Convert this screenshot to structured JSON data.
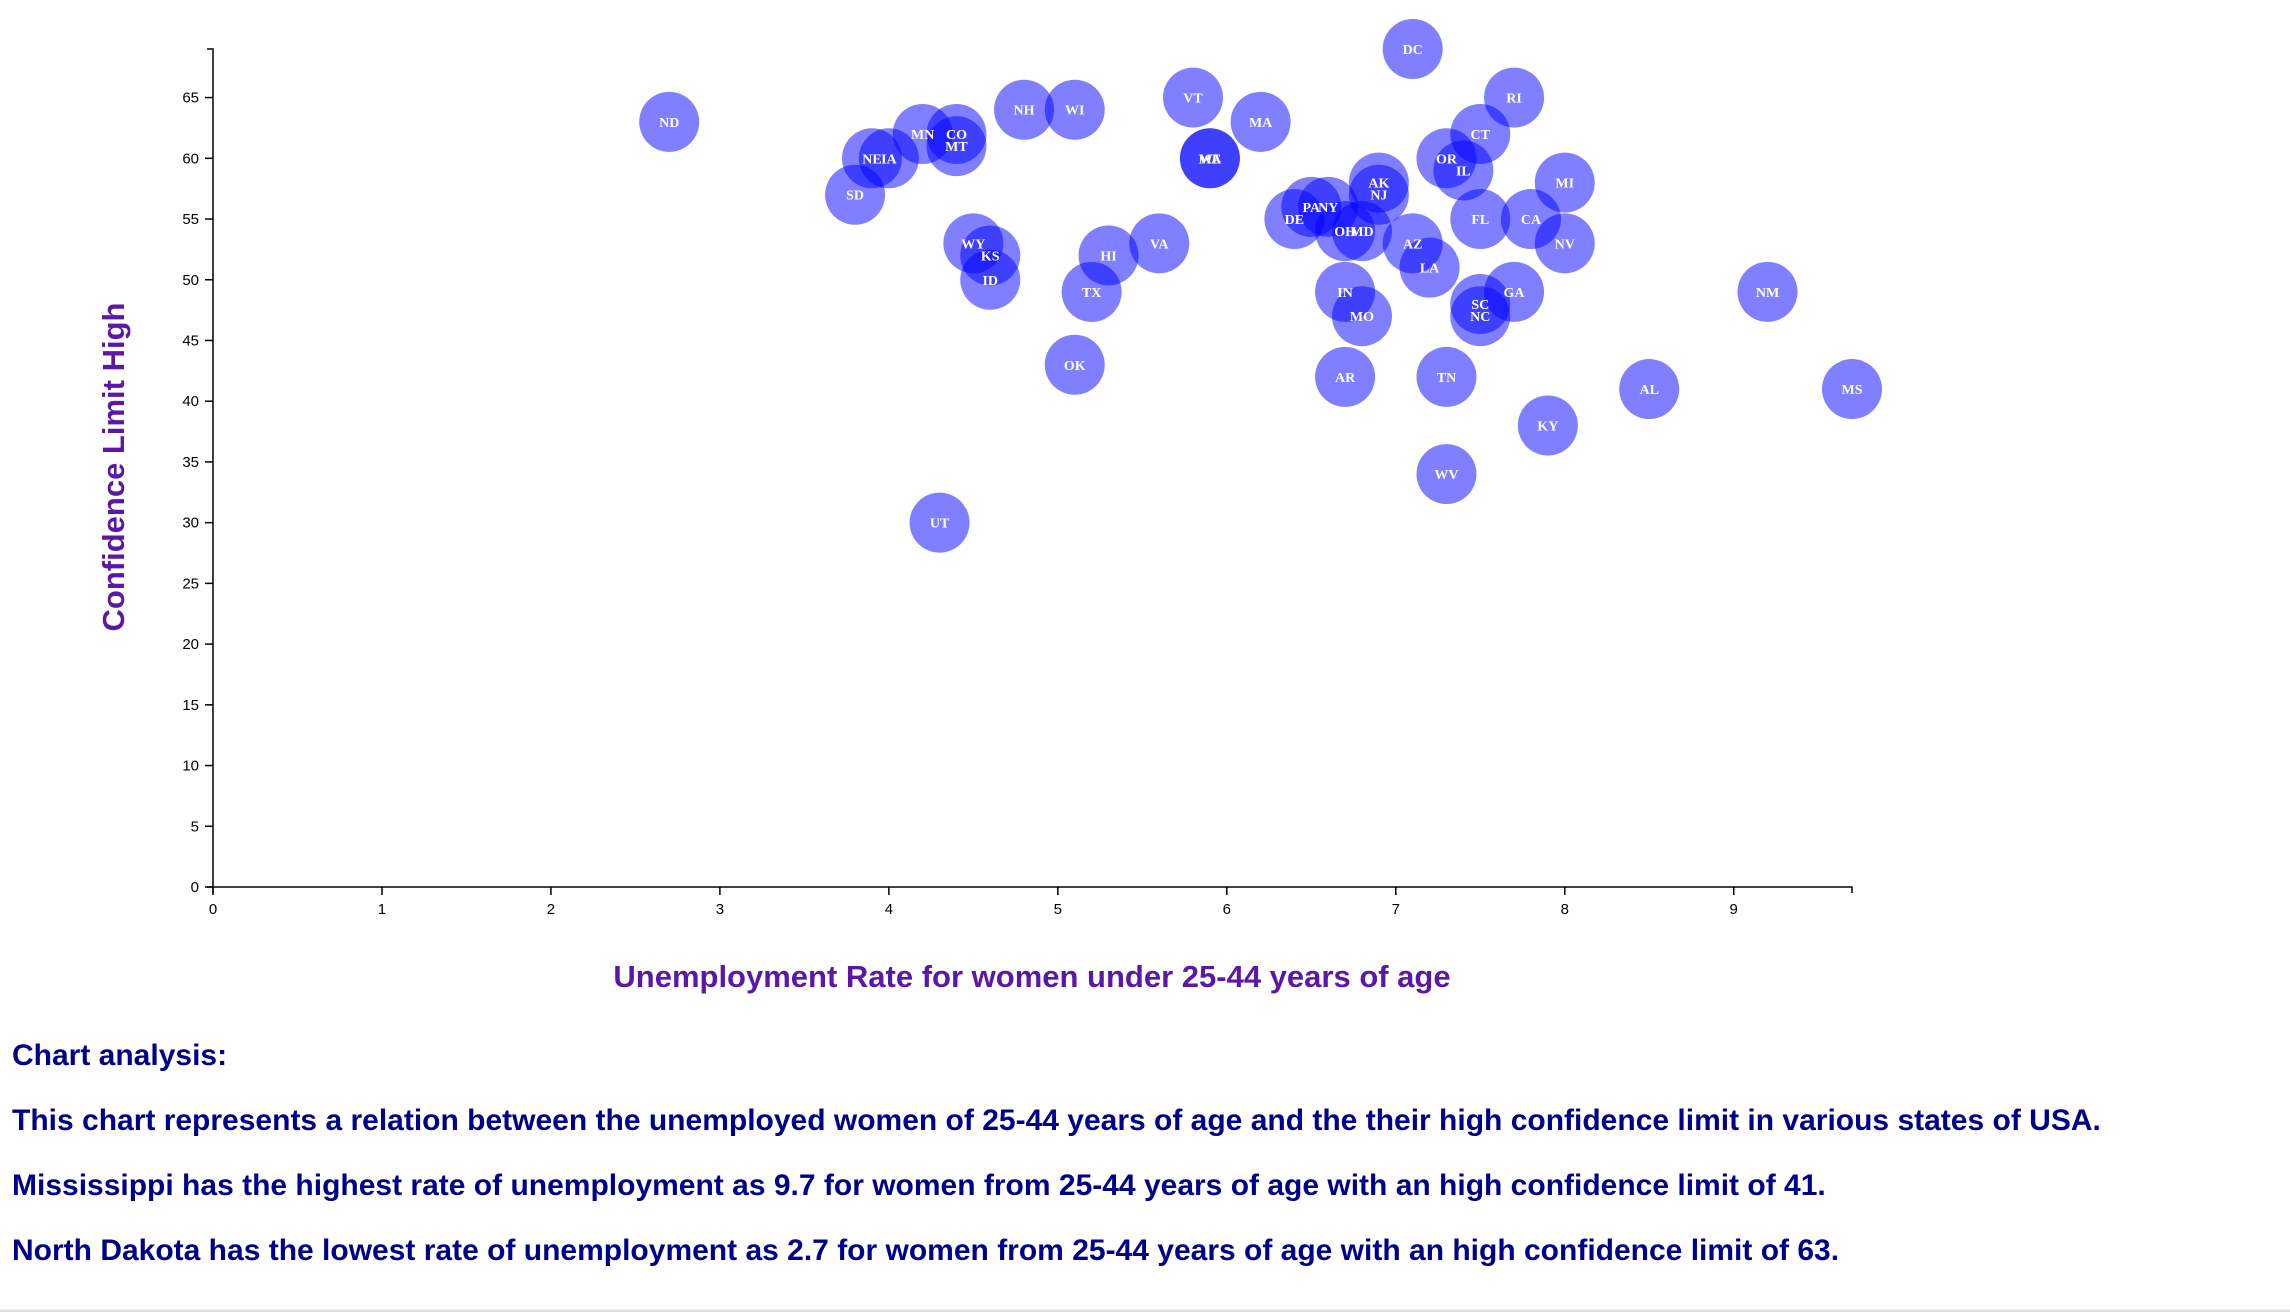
{
  "chart_data": {
    "type": "scatter",
    "title": "",
    "xlabel": "Unemployment Rate for women under 25-44 years of age",
    "ylabel": "Confidence Limit High",
    "xlim": [
      0,
      9.7
    ],
    "ylim": [
      0,
      69
    ],
    "x_ticks": [
      "0",
      "1",
      "2",
      "3",
      "4",
      "5",
      "6",
      "7",
      "8",
      "9"
    ],
    "y_ticks": [
      "0",
      "5",
      "10",
      "15",
      "20",
      "25",
      "30",
      "35",
      "40",
      "45",
      "50",
      "55",
      "60",
      "65"
    ],
    "grid": false,
    "points": [
      {
        "label": "ND",
        "x": 2.7,
        "y": 63
      },
      {
        "label": "SD",
        "x": 3.8,
        "y": 57
      },
      {
        "label": "NE",
        "x": 3.9,
        "y": 60
      },
      {
        "label": "IA",
        "x": 4.0,
        "y": 60
      },
      {
        "label": "MN",
        "x": 4.2,
        "y": 62
      },
      {
        "label": "CO",
        "x": 4.4,
        "y": 62
      },
      {
        "label": "MT",
        "x": 4.4,
        "y": 61
      },
      {
        "label": "UT",
        "x": 4.3,
        "y": 30
      },
      {
        "label": "WY",
        "x": 4.5,
        "y": 53
      },
      {
        "label": "KS",
        "x": 4.6,
        "y": 52
      },
      {
        "label": "ID",
        "x": 4.6,
        "y": 50
      },
      {
        "label": "NH",
        "x": 4.8,
        "y": 64
      },
      {
        "label": "WI",
        "x": 5.1,
        "y": 64
      },
      {
        "label": "OK",
        "x": 5.1,
        "y": 43
      },
      {
        "label": "TX",
        "x": 5.2,
        "y": 49
      },
      {
        "label": "HI",
        "x": 5.3,
        "y": 52
      },
      {
        "label": "VA",
        "x": 5.6,
        "y": 53
      },
      {
        "label": "VT",
        "x": 5.8,
        "y": 65
      },
      {
        "label": "ME",
        "x": 5.9,
        "y": 60
      },
      {
        "label": "WA",
        "x": 5.9,
        "y": 60
      },
      {
        "label": "MA",
        "x": 6.2,
        "y": 63
      },
      {
        "label": "DE",
        "x": 6.4,
        "y": 55
      },
      {
        "label": "PA",
        "x": 6.5,
        "y": 56
      },
      {
        "label": "NY",
        "x": 6.6,
        "y": 56
      },
      {
        "label": "OH",
        "x": 6.7,
        "y": 54
      },
      {
        "label": "MD",
        "x": 6.8,
        "y": 54
      },
      {
        "label": "AK",
        "x": 6.9,
        "y": 58
      },
      {
        "label": "NJ",
        "x": 6.9,
        "y": 57
      },
      {
        "label": "IN",
        "x": 6.7,
        "y": 49
      },
      {
        "label": "MO",
        "x": 6.8,
        "y": 47
      },
      {
        "label": "AR",
        "x": 6.7,
        "y": 42
      },
      {
        "label": "DC",
        "x": 7.1,
        "y": 69
      },
      {
        "label": "AZ",
        "x": 7.1,
        "y": 53
      },
      {
        "label": "LA",
        "x": 7.2,
        "y": 51
      },
      {
        "label": "OR",
        "x": 7.3,
        "y": 60
      },
      {
        "label": "IL",
        "x": 7.4,
        "y": 59
      },
      {
        "label": "CT",
        "x": 7.5,
        "y": 62
      },
      {
        "label": "TN",
        "x": 7.3,
        "y": 42
      },
      {
        "label": "WV",
        "x": 7.3,
        "y": 34
      },
      {
        "label": "FL",
        "x": 7.5,
        "y": 55
      },
      {
        "label": "SC",
        "x": 7.5,
        "y": 48
      },
      {
        "label": "NC",
        "x": 7.5,
        "y": 47
      },
      {
        "label": "RI",
        "x": 7.7,
        "y": 65
      },
      {
        "label": "GA",
        "x": 7.7,
        "y": 49
      },
      {
        "label": "CA",
        "x": 7.8,
        "y": 55
      },
      {
        "label": "MI",
        "x": 8.0,
        "y": 58
      },
      {
        "label": "NV",
        "x": 8.0,
        "y": 53
      },
      {
        "label": "KY",
        "x": 7.9,
        "y": 38
      },
      {
        "label": "AL",
        "x": 8.5,
        "y": 41
      },
      {
        "label": "NM",
        "x": 9.2,
        "y": 49
      },
      {
        "label": "MS",
        "x": 9.7,
        "y": 41
      }
    ],
    "colors": {
      "marker_fill": "#0000ff",
      "marker_opacity": 0.5,
      "label_color": "#ffffff",
      "axis_title_color": "#5a17a8",
      "analysis_text_color": "#00008b"
    }
  },
  "analysis": {
    "heading": "Chart analysis:",
    "lines": [
      "This chart represents a relation between the unemployed women of 25-44 years of age and the their high confidence limit in various states of USA.",
      "Mississippi has the highest rate of unemployment as 9.7 for women from 25-44 years of age with an high confidence limit of 41.",
      "North Dakota has the lowest rate of unemployment as 2.7 for women from 25-44 years of age with an high confidence limit of 63."
    ]
  }
}
